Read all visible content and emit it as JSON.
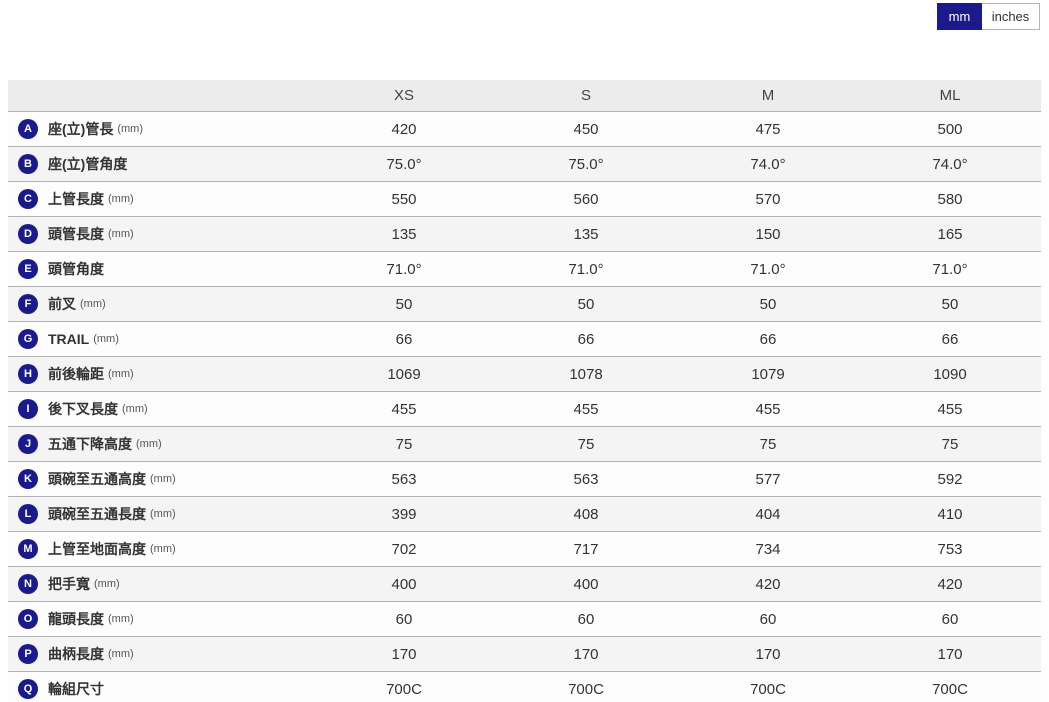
{
  "unit_toggle": {
    "mm_label": "mm",
    "inches_label": "inches",
    "selected": "mm"
  },
  "table": {
    "size_headers": [
      "XS",
      "S",
      "M",
      "ML"
    ],
    "rows": [
      {
        "letter": "A",
        "label": "座(立)管長",
        "unit": "(mm)",
        "values": [
          "420",
          "450",
          "475",
          "500"
        ]
      },
      {
        "letter": "B",
        "label": "座(立)管角度",
        "unit": "",
        "values": [
          "75.0°",
          "75.0°",
          "74.0°",
          "74.0°"
        ]
      },
      {
        "letter": "C",
        "label": "上管長度",
        "unit": "(mm)",
        "values": [
          "550",
          "560",
          "570",
          "580"
        ]
      },
      {
        "letter": "D",
        "label": "頭管長度",
        "unit": "(mm)",
        "values": [
          "135",
          "135",
          "150",
          "165"
        ]
      },
      {
        "letter": "E",
        "label": "頭管角度",
        "unit": "",
        "values": [
          "71.0°",
          "71.0°",
          "71.0°",
          "71.0°"
        ]
      },
      {
        "letter": "F",
        "label": "前叉",
        "unit": "(mm)",
        "values": [
          "50",
          "50",
          "50",
          "50"
        ]
      },
      {
        "letter": "G",
        "label": "TRAIL",
        "unit": "(mm)",
        "values": [
          "66",
          "66",
          "66",
          "66"
        ]
      },
      {
        "letter": "H",
        "label": "前後輪距",
        "unit": "(mm)",
        "values": [
          "1069",
          "1078",
          "1079",
          "1090"
        ]
      },
      {
        "letter": "I",
        "label": "後下叉長度",
        "unit": "(mm)",
        "values": [
          "455",
          "455",
          "455",
          "455"
        ]
      },
      {
        "letter": "J",
        "label": "五通下降高度",
        "unit": "(mm)",
        "values": [
          "75",
          "75",
          "75",
          "75"
        ]
      },
      {
        "letter": "K",
        "label": "頭碗至五通高度",
        "unit": "(mm)",
        "values": [
          "563",
          "563",
          "577",
          "592"
        ]
      },
      {
        "letter": "L",
        "label": "頭碗至五通長度",
        "unit": "(mm)",
        "values": [
          "399",
          "408",
          "404",
          "410"
        ]
      },
      {
        "letter": "M",
        "label": "上管至地面高度",
        "unit": "(mm)",
        "values": [
          "702",
          "717",
          "734",
          "753"
        ]
      },
      {
        "letter": "N",
        "label": "把手寬",
        "unit": "(mm)",
        "values": [
          "400",
          "400",
          "420",
          "420"
        ]
      },
      {
        "letter": "O",
        "label": "龍頭長度",
        "unit": "(mm)",
        "values": [
          "60",
          "60",
          "60",
          "60"
        ]
      },
      {
        "letter": "P",
        "label": "曲柄長度",
        "unit": "(mm)",
        "values": [
          "170",
          "170",
          "170",
          "170"
        ]
      },
      {
        "letter": "Q",
        "label": "輪組尺寸",
        "unit": "",
        "values": [
          "700C",
          "700C",
          "700C",
          "700C"
        ]
      }
    ]
  },
  "colors": {
    "accent_navy": "#1a1a8c",
    "header_bg": "#ececec",
    "stripe_bg": "#f4f4f4",
    "row_border": "#b3b3b3",
    "text": "#333333"
  }
}
